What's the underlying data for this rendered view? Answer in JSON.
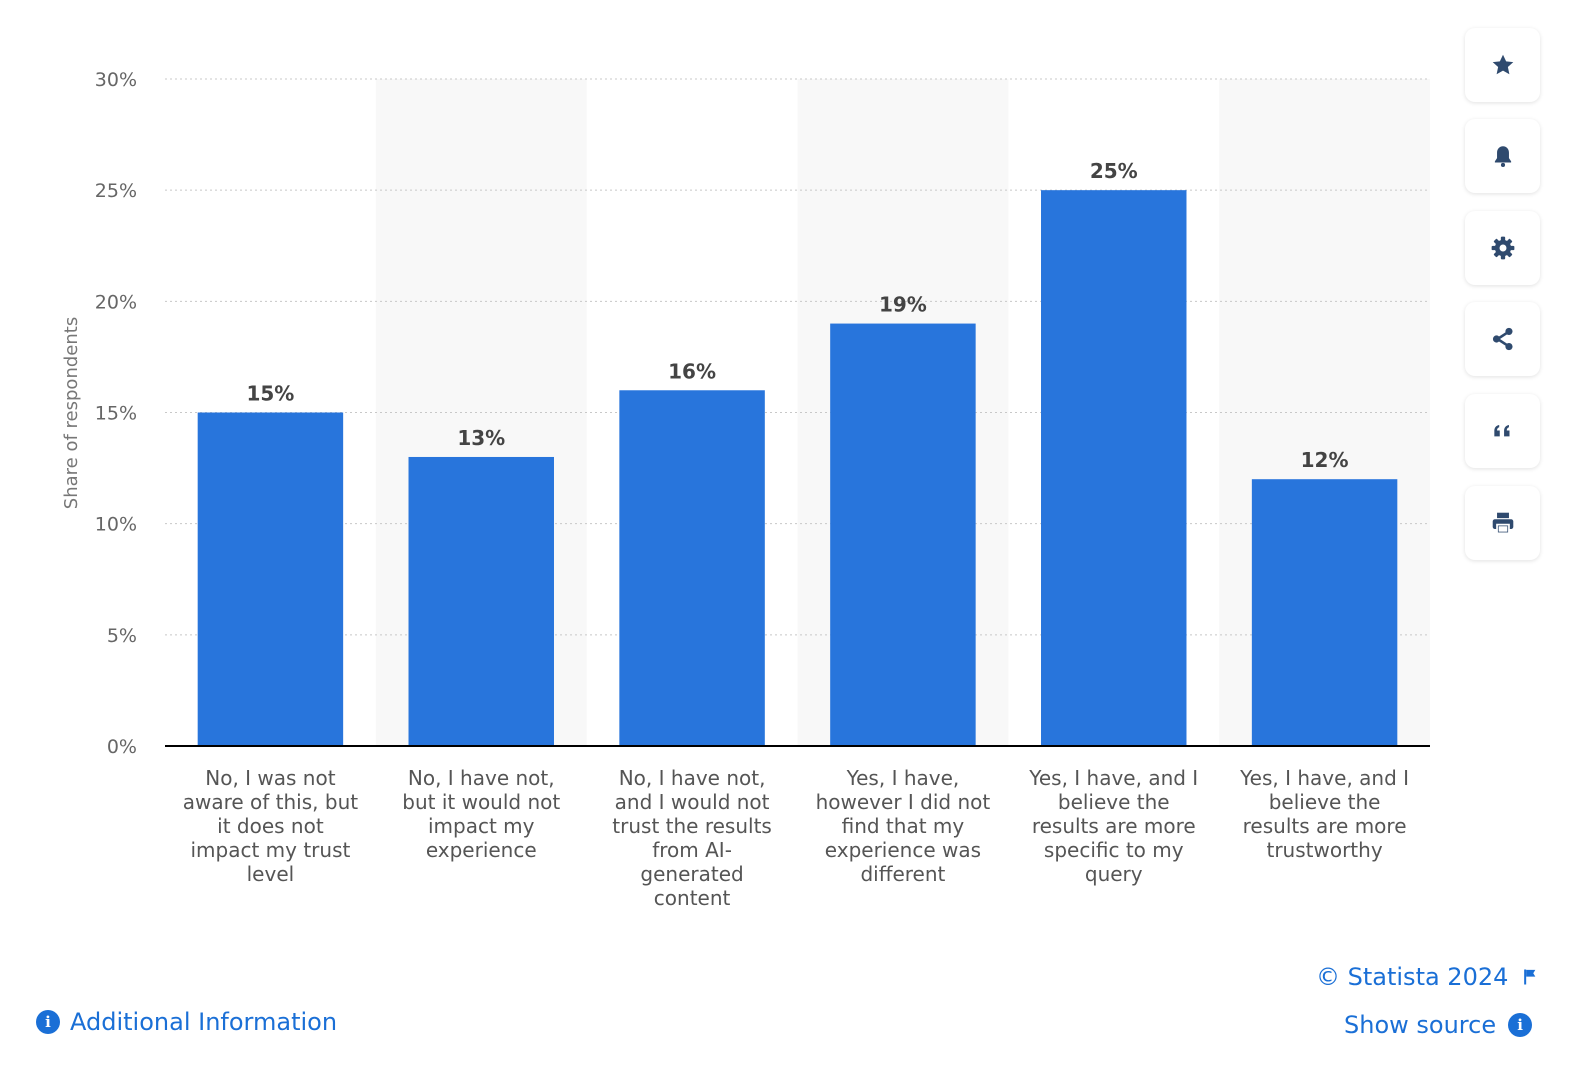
{
  "chart_data": {
    "type": "bar",
    "categories": [
      "No, I was not aware of this, but it does not impact my trust level",
      "No, I have not, but it would not impact my experience",
      "No, I have not, and I would not trust the results from AI-generated content",
      "Yes, I have, however I did not find that my experience was different",
      "Yes, I have, and I believe the results are more specific to my query",
      "Yes, I have, and I believe the results are more trustworthy"
    ],
    "category_lines": [
      [
        "No, I was not",
        "aware of this, but",
        "it does not",
        "impact my trust",
        "level"
      ],
      [
        "No, I have not,",
        "but it would not",
        "impact my",
        "experience"
      ],
      [
        "No, I have not,",
        "and I would not",
        "trust the results",
        "from AI-",
        "generated",
        "content"
      ],
      [
        "Yes, I have,",
        "however I did not",
        "find that my",
        "experience was",
        "different"
      ],
      [
        "Yes, I have, and I",
        "believe the",
        "results are more",
        "specific to my",
        "query"
      ],
      [
        "Yes, I have, and I",
        "believe the",
        "results are more",
        "trustworthy"
      ]
    ],
    "values": [
      15,
      13,
      16,
      19,
      25,
      12
    ],
    "data_labels": [
      "15%",
      "13%",
      "16%",
      "19%",
      "25%",
      "12%"
    ],
    "ylabel": "Share of respondents",
    "ylim": [
      0,
      30
    ],
    "yticks": [
      0,
      5,
      10,
      15,
      20,
      25,
      30
    ],
    "ytick_labels": [
      "0%",
      "5%",
      "10%",
      "15%",
      "20%",
      "25%",
      "30%"
    ],
    "grid": true,
    "bar_color": "#2875dc"
  },
  "sidebar": {
    "buttons": [
      {
        "name": "favorite",
        "icon": "star-icon"
      },
      {
        "name": "notify",
        "icon": "bell-icon"
      },
      {
        "name": "settings",
        "icon": "gear-icon"
      },
      {
        "name": "share",
        "icon": "share-icon"
      },
      {
        "name": "cite",
        "icon": "quote-icon"
      },
      {
        "name": "print",
        "icon": "printer-icon"
      }
    ]
  },
  "footer": {
    "copyright": "© Statista 2024",
    "additional_info": "Additional Information",
    "show_source": "Show source"
  },
  "colors": {
    "accent": "#1a6fd6",
    "icon": "#2f4a6e"
  }
}
